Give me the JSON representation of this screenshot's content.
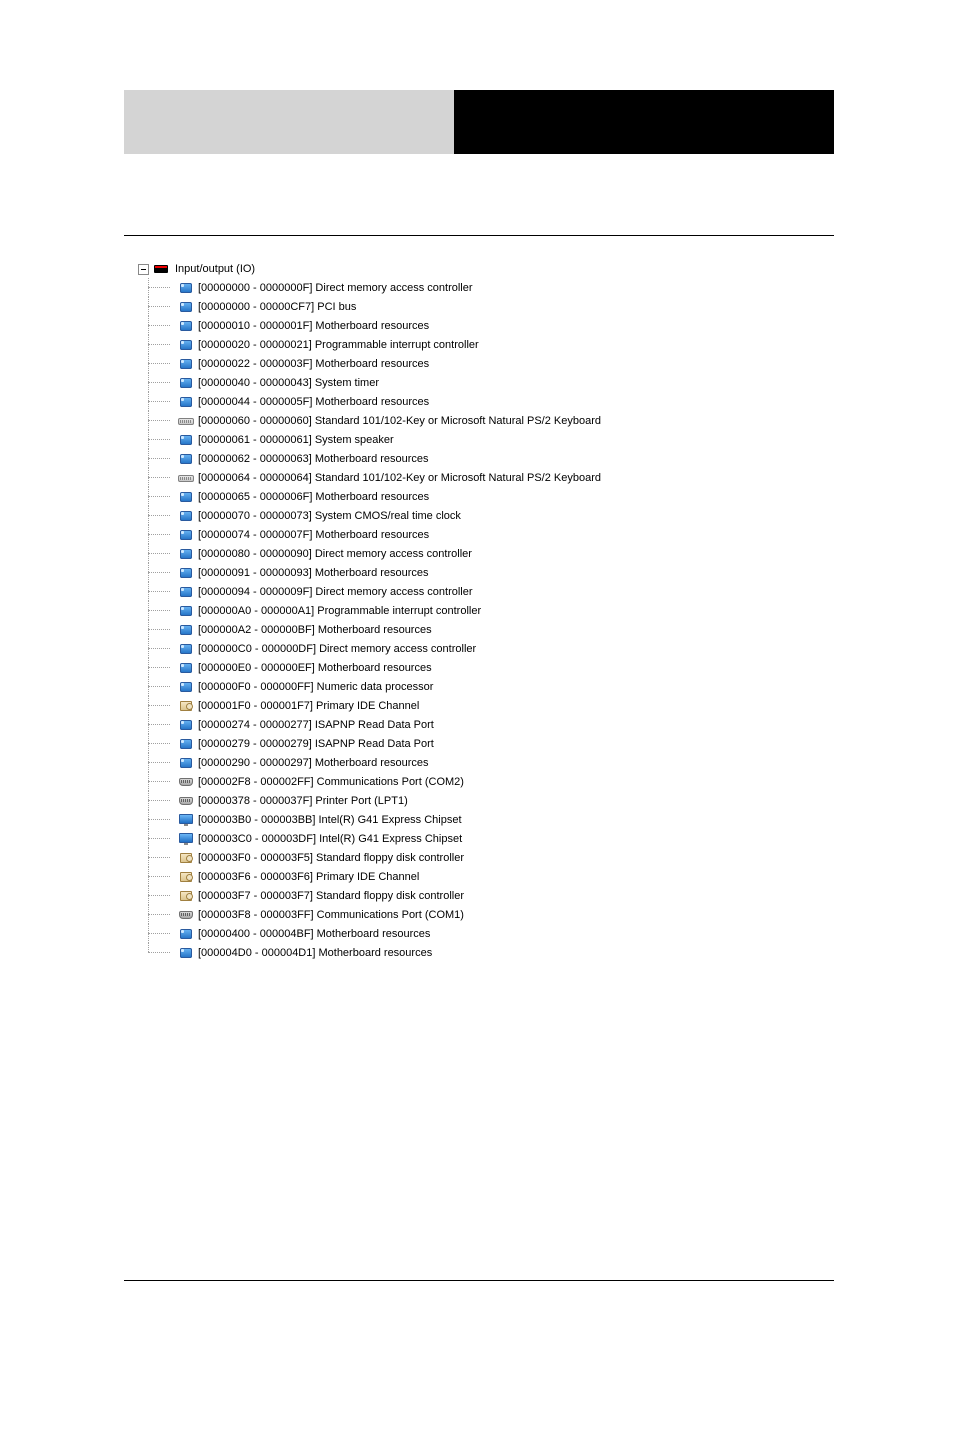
{
  "root": {
    "label": "Input/output (IO)",
    "icon": "io"
  },
  "items": [
    {
      "range": "[00000000 - 0000000F]",
      "desc": "Direct memory access controller",
      "icon": "chip"
    },
    {
      "range": "[00000000 - 00000CF7]",
      "desc": "PCI bus",
      "icon": "chip"
    },
    {
      "range": "[00000010 - 0000001F]",
      "desc": "Motherboard resources",
      "icon": "chip"
    },
    {
      "range": "[00000020 - 00000021]",
      "desc": "Programmable interrupt controller",
      "icon": "chip"
    },
    {
      "range": "[00000022 - 0000003F]",
      "desc": "Motherboard resources",
      "icon": "chip"
    },
    {
      "range": "[00000040 - 00000043]",
      "desc": "System timer",
      "icon": "chip"
    },
    {
      "range": "[00000044 - 0000005F]",
      "desc": "Motherboard resources",
      "icon": "chip"
    },
    {
      "range": "[00000060 - 00000060]",
      "desc": "Standard 101/102-Key or Microsoft Natural PS/2 Keyboard",
      "icon": "kbd"
    },
    {
      "range": "[00000061 - 00000061]",
      "desc": "System speaker",
      "icon": "chip"
    },
    {
      "range": "[00000062 - 00000063]",
      "desc": "Motherboard resources",
      "icon": "chip"
    },
    {
      "range": "[00000064 - 00000064]",
      "desc": "Standard 101/102-Key or Microsoft Natural PS/2 Keyboard",
      "icon": "kbd"
    },
    {
      "range": "[00000065 - 0000006F]",
      "desc": "Motherboard resources",
      "icon": "chip"
    },
    {
      "range": "[00000070 - 00000073]",
      "desc": "System CMOS/real time clock",
      "icon": "chip"
    },
    {
      "range": "[00000074 - 0000007F]",
      "desc": "Motherboard resources",
      "icon": "chip"
    },
    {
      "range": "[00000080 - 00000090]",
      "desc": "Direct memory access controller",
      "icon": "chip"
    },
    {
      "range": "[00000091 - 00000093]",
      "desc": "Motherboard resources",
      "icon": "chip"
    },
    {
      "range": "[00000094 - 0000009F]",
      "desc": "Direct memory access controller",
      "icon": "chip"
    },
    {
      "range": "[000000A0 - 000000A1]",
      "desc": "Programmable interrupt controller",
      "icon": "chip"
    },
    {
      "range": "[000000A2 - 000000BF]",
      "desc": "Motherboard resources",
      "icon": "chip"
    },
    {
      "range": "[000000C0 - 000000DF]",
      "desc": "Direct memory access controller",
      "icon": "chip"
    },
    {
      "range": "[000000E0 - 000000EF]",
      "desc": "Motherboard resources",
      "icon": "chip"
    },
    {
      "range": "[000000F0 - 000000FF]",
      "desc": "Numeric data processor",
      "icon": "chip"
    },
    {
      "range": "[000001F0 - 000001F7]",
      "desc": "Primary IDE Channel",
      "icon": "disk"
    },
    {
      "range": "[00000274 - 00000277]",
      "desc": "ISAPNP Read Data Port",
      "icon": "chip"
    },
    {
      "range": "[00000279 - 00000279]",
      "desc": "ISAPNP Read Data Port",
      "icon": "chip"
    },
    {
      "range": "[00000290 - 00000297]",
      "desc": "Motherboard resources",
      "icon": "chip"
    },
    {
      "range": "[000002F8 - 000002FF]",
      "desc": "Communications Port (COM2)",
      "icon": "port"
    },
    {
      "range": "[00000378 - 0000037F]",
      "desc": "Printer Port (LPT1)",
      "icon": "port"
    },
    {
      "range": "[000003B0 - 000003BB]",
      "desc": "Intel(R) G41 Express Chipset",
      "icon": "disp"
    },
    {
      "range": "[000003C0 - 000003DF]",
      "desc": "Intel(R) G41 Express Chipset",
      "icon": "disp"
    },
    {
      "range": "[000003F0 - 000003F5]",
      "desc": "Standard floppy disk controller",
      "icon": "disk"
    },
    {
      "range": "[000003F6 - 000003F6]",
      "desc": "Primary IDE Channel",
      "icon": "disk"
    },
    {
      "range": "[000003F7 - 000003F7]",
      "desc": "Standard floppy disk controller",
      "icon": "disk"
    },
    {
      "range": "[000003F8 - 000003FF]",
      "desc": "Communications Port (COM1)",
      "icon": "port"
    },
    {
      "range": "[00000400 - 000004BF]",
      "desc": "Motherboard resources",
      "icon": "chip"
    },
    {
      "range": "[000004D0 - 000004D1]",
      "desc": "Motherboard resources",
      "icon": "chip"
    }
  ],
  "icons": {
    "chip": "ic-chip",
    "kbd": "ic-kbd",
    "disk": "ic-disk",
    "port": "ic-port",
    "disp": "ic-disp",
    "io": "ic-io"
  }
}
